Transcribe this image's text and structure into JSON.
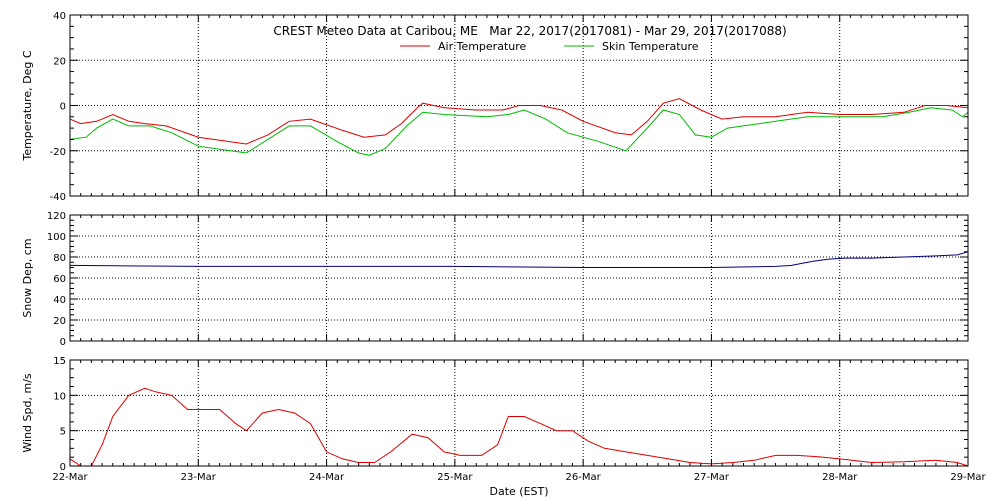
{
  "chart_data": {
    "type": "line",
    "title": "CREST Meteo Data at Caribou, ME   Mar 22, 2017(2017081) - Mar 29, 2017(2017088)",
    "xlabel": "Date (EST)",
    "x_range": [
      "2017-03-22",
      "2017-03-29"
    ],
    "x_ticks": [
      "22-Mar",
      "23-Mar",
      "24-Mar",
      "25-Mar",
      "26-Mar",
      "27-Mar",
      "28-Mar",
      "29-Mar"
    ],
    "grid": true,
    "legend_position": "top-center",
    "panels": [
      {
        "id": "temperature",
        "ylabel": "Temperature, Deg C",
        "ylim": [
          -40,
          40
        ],
        "yticks": [
          -40,
          -20,
          0,
          20,
          40
        ],
        "series": [
          {
            "name": "Air Temperature",
            "color": "#dd0000",
            "points": [
              [
                "2017-03-22T00:00",
                -6
              ],
              [
                "2017-03-22T02:00",
                -8
              ],
              [
                "2017-03-22T05:00",
                -7
              ],
              [
                "2017-03-22T08:00",
                -4
              ],
              [
                "2017-03-22T11:00",
                -7
              ],
              [
                "2017-03-22T14:00",
                -8
              ],
              [
                "2017-03-22T18:00",
                -9
              ],
              [
                "2017-03-23T00:00",
                -14
              ],
              [
                "2017-03-23T06:00",
                -16
              ],
              [
                "2017-03-23T09:00",
                -17
              ],
              [
                "2017-03-23T13:00",
                -13
              ],
              [
                "2017-03-23T17:00",
                -7
              ],
              [
                "2017-03-23T21:00",
                -6
              ],
              [
                "2017-03-24T03:00",
                -11
              ],
              [
                "2017-03-24T07:00",
                -14
              ],
              [
                "2017-03-24T11:00",
                -13
              ],
              [
                "2017-03-24T14:00",
                -8
              ],
              [
                "2017-03-24T17:00",
                -1
              ],
              [
                "2017-03-24T18:00",
                1
              ],
              [
                "2017-03-24T22:00",
                -1
              ],
              [
                "2017-03-25T04:00",
                -2
              ],
              [
                "2017-03-25T09:00",
                -2
              ],
              [
                "2017-03-25T12:00",
                0
              ],
              [
                "2017-03-25T16:00",
                0
              ],
              [
                "2017-03-25T20:00",
                -2
              ],
              [
                "2017-03-26T00:00",
                -7
              ],
              [
                "2017-03-26T06:00",
                -12
              ],
              [
                "2017-03-26T09:00",
                -13
              ],
              [
                "2017-03-26T12:00",
                -7
              ],
              [
                "2017-03-26T15:00",
                1
              ],
              [
                "2017-03-26T18:00",
                3
              ],
              [
                "2017-03-26T22:00",
                -2
              ],
              [
                "2017-03-27T02:00",
                -6
              ],
              [
                "2017-03-27T06:00",
                -5
              ],
              [
                "2017-03-27T12:00",
                -5
              ],
              [
                "2017-03-27T18:00",
                -3
              ],
              [
                "2017-03-28T00:00",
                -4
              ],
              [
                "2017-03-28T06:00",
                -4
              ],
              [
                "2017-03-28T12:00",
                -3
              ],
              [
                "2017-03-28T16:00",
                0
              ],
              [
                "2017-03-28T20:00",
                0
              ],
              [
                "2017-03-29T00:00",
                -1
              ]
            ]
          },
          {
            "name": "Skin Temperature",
            "color": "#00bb00",
            "points": [
              [
                "2017-03-22T00:00",
                -15
              ],
              [
                "2017-03-22T03:00",
                -14
              ],
              [
                "2017-03-22T05:00",
                -10
              ],
              [
                "2017-03-22T08:00",
                -6
              ],
              [
                "2017-03-22T11:00",
                -9
              ],
              [
                "2017-03-22T15:00",
                -9
              ],
              [
                "2017-03-22T19:00",
                -12
              ],
              [
                "2017-03-23T00:00",
                -18
              ],
              [
                "2017-03-23T06:00",
                -20
              ],
              [
                "2017-03-23T09:00",
                -21
              ],
              [
                "2017-03-23T13:00",
                -15
              ],
              [
                "2017-03-23T17:00",
                -9
              ],
              [
                "2017-03-23T21:00",
                -9
              ],
              [
                "2017-03-24T02:00",
                -16
              ],
              [
                "2017-03-24T06:00",
                -21
              ],
              [
                "2017-03-24T08:00",
                -22
              ],
              [
                "2017-03-24T11:00",
                -19
              ],
              [
                "2017-03-24T15:00",
                -9
              ],
              [
                "2017-03-24T18:00",
                -3
              ],
              [
                "2017-03-24T22:00",
                -4
              ],
              [
                "2017-03-25T06:00",
                -5
              ],
              [
                "2017-03-25T10:00",
                -4
              ],
              [
                "2017-03-25T13:00",
                -2
              ],
              [
                "2017-03-25T17:00",
                -6
              ],
              [
                "2017-03-25T21:00",
                -12
              ],
              [
                "2017-03-26T03:00",
                -16
              ],
              [
                "2017-03-26T08:00",
                -20
              ],
              [
                "2017-03-26T12:00",
                -10
              ],
              [
                "2017-03-26T15:00",
                -2
              ],
              [
                "2017-03-26T18:00",
                -4
              ],
              [
                "2017-03-26T21:00",
                -13
              ],
              [
                "2017-03-27T00:00",
                -14
              ],
              [
                "2017-03-27T03:00",
                -10
              ],
              [
                "2017-03-27T12:00",
                -7
              ],
              [
                "2017-03-27T18:00",
                -5
              ],
              [
                "2017-03-28T00:00",
                -5
              ],
              [
                "2017-03-28T08:00",
                -5
              ],
              [
                "2017-03-28T13:00",
                -3
              ],
              [
                "2017-03-28T17:00",
                -1
              ],
              [
                "2017-03-28T21:00",
                -2
              ],
              [
                "2017-03-28T23:00",
                -5
              ],
              [
                "2017-03-29T00:00",
                -3
              ]
            ]
          }
        ]
      },
      {
        "id": "snow",
        "ylabel": "Snow Dep, cm",
        "ylim": [
          0,
          120
        ],
        "yticks": [
          0,
          20,
          40,
          60,
          80,
          100,
          120
        ],
        "series": [
          {
            "name": "",
            "color": "#000080",
            "points": [
              [
                "2017-03-22T00:00",
                72
              ],
              [
                "2017-03-23T00:00",
                71
              ],
              [
                "2017-03-24T00:00",
                71
              ],
              [
                "2017-03-25T00:00",
                71
              ],
              [
                "2017-03-26T00:00",
                70
              ],
              [
                "2017-03-27T00:00",
                70
              ],
              [
                "2017-03-27T12:00",
                71
              ],
              [
                "2017-03-27T15:00",
                72
              ],
              [
                "2017-03-27T17:00",
                74
              ],
              [
                "2017-03-27T19:00",
                76
              ],
              [
                "2017-03-27T22:00",
                78
              ],
              [
                "2017-03-28T01:00",
                79
              ],
              [
                "2017-03-28T06:00",
                79
              ],
              [
                "2017-03-28T12:00",
                80
              ],
              [
                "2017-03-28T18:00",
                81
              ],
              [
                "2017-03-28T22:00",
                82
              ],
              [
                "2017-03-29T00:00",
                85
              ]
            ]
          }
        ]
      },
      {
        "id": "wind",
        "ylabel": "Wind Spd, m/s",
        "ylim": [
          0,
          15
        ],
        "yticks": [
          0,
          5,
          10,
          15
        ],
        "series": [
          {
            "name": "",
            "color": "#dd0000",
            "points": [
              [
                "2017-03-22T00:00",
                1
              ],
              [
                "2017-03-22T02:00",
                0
              ],
              [
                "2017-03-22T04:00",
                0
              ],
              [
                "2017-03-22T06:00",
                3
              ],
              [
                "2017-03-22T08:00",
                7
              ],
              [
                "2017-03-22T11:00",
                10
              ],
              [
                "2017-03-22T14:00",
                11
              ],
              [
                "2017-03-22T16:00",
                10.5
              ],
              [
                "2017-03-22T19:00",
                10
              ],
              [
                "2017-03-22T22:00",
                8
              ],
              [
                "2017-03-23T01:00",
                8
              ],
              [
                "2017-03-23T04:00",
                8
              ],
              [
                "2017-03-23T07:00",
                6
              ],
              [
                "2017-03-23T09:00",
                5
              ],
              [
                "2017-03-23T12:00",
                7.5
              ],
              [
                "2017-03-23T15:00",
                8
              ],
              [
                "2017-03-23T18:00",
                7.5
              ],
              [
                "2017-03-23T21:00",
                6
              ],
              [
                "2017-03-24T00:00",
                2
              ],
              [
                "2017-03-24T03:00",
                1
              ],
              [
                "2017-03-24T06:00",
                0.5
              ],
              [
                "2017-03-24T09:00",
                0.5
              ],
              [
                "2017-03-24T12:00",
                2
              ],
              [
                "2017-03-24T16:00",
                4.5
              ],
              [
                "2017-03-24T19:00",
                4
              ],
              [
                "2017-03-24T22:00",
                2
              ],
              [
                "2017-03-25T01:00",
                1.5
              ],
              [
                "2017-03-25T05:00",
                1.5
              ],
              [
                "2017-03-25T08:00",
                3
              ],
              [
                "2017-03-25T10:00",
                7
              ],
              [
                "2017-03-25T13:00",
                7
              ],
              [
                "2017-03-25T16:00",
                6
              ],
              [
                "2017-03-25T19:00",
                5
              ],
              [
                "2017-03-25T22:00",
                5
              ],
              [
                "2017-03-26T01:00",
                3.5
              ],
              [
                "2017-03-26T04:00",
                2.5
              ],
              [
                "2017-03-26T08:00",
                2
              ],
              [
                "2017-03-26T12:00",
                1.5
              ],
              [
                "2017-03-26T16:00",
                1
              ],
              [
                "2017-03-26T20:00",
                0.5
              ],
              [
                "2017-03-27T00:00",
                0.3
              ],
              [
                "2017-03-27T04:00",
                0.5
              ],
              [
                "2017-03-27T08:00",
                0.8
              ],
              [
                "2017-03-27T12:00",
                1.5
              ],
              [
                "2017-03-27T16:00",
                1.5
              ],
              [
                "2017-03-27T20:00",
                1.3
              ],
              [
                "2017-03-28T00:00",
                1
              ],
              [
                "2017-03-28T06:00",
                0.5
              ],
              [
                "2017-03-28T12:00",
                0.6
              ],
              [
                "2017-03-28T18:00",
                0.8
              ],
              [
                "2017-03-28T22:00",
                0.5
              ],
              [
                "2017-03-29T00:00",
                0
              ]
            ]
          }
        ]
      }
    ]
  }
}
